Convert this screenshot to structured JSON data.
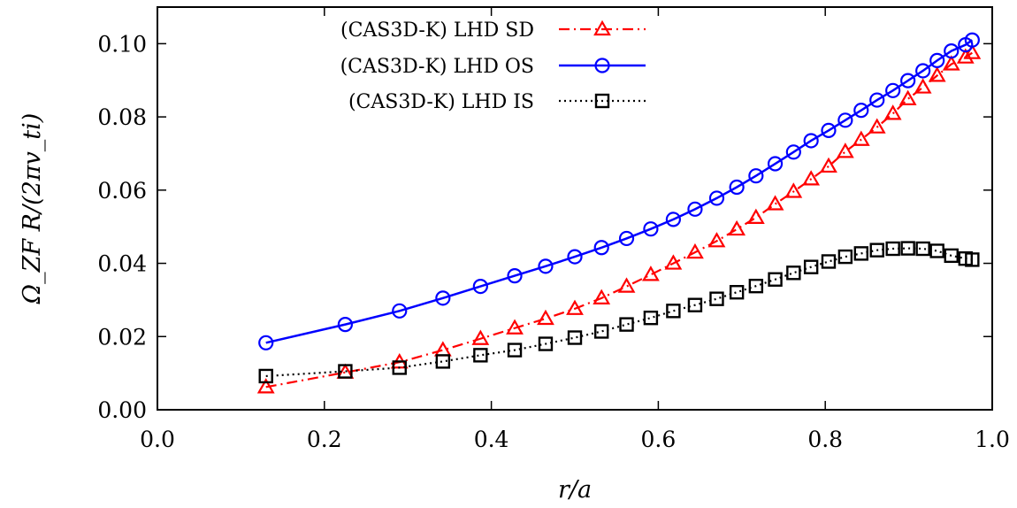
{
  "chart_data": {
    "type": "line",
    "xlabel": "r/a",
    "ylabel": "Ω_ZF R/(2πv_ti)",
    "xlim": [
      0.0,
      1.0
    ],
    "ylim": [
      0.0,
      0.11
    ],
    "x_ticks": [
      "0.0",
      "0.2",
      "0.4",
      "0.6",
      "0.8",
      "1.0"
    ],
    "y_ticks": [
      "0.00",
      "0.02",
      "0.04",
      "0.06",
      "0.08",
      "0.10"
    ],
    "grid": false,
    "legend_position": "top-center",
    "series": [
      {
        "name": "(CAS3D-K) LHD SD",
        "color": "#ff0000",
        "line_style": "dash-dot",
        "marker": "triangle",
        "x": [
          0.13,
          0.225,
          0.29,
          0.342,
          0.387,
          0.428,
          0.465,
          0.5,
          0.532,
          0.562,
          0.591,
          0.618,
          0.644,
          0.67,
          0.694,
          0.717,
          0.74,
          0.762,
          0.783,
          0.804,
          0.824,
          0.843,
          0.862,
          0.881,
          0.899,
          0.917,
          0.934,
          0.951,
          0.968,
          0.976
        ],
        "y": [
          0.0062,
          0.0102,
          0.013,
          0.0163,
          0.0194,
          0.0223,
          0.0249,
          0.0276,
          0.0305,
          0.0337,
          0.0369,
          0.04,
          0.043,
          0.0461,
          0.0493,
          0.0525,
          0.0562,
          0.0596,
          0.063,
          0.0665,
          0.0705,
          0.0738,
          0.0772,
          0.0809,
          0.0849,
          0.0881,
          0.0913,
          0.0944,
          0.0963,
          0.0975
        ]
      },
      {
        "name": "(CAS3D-K) LHD OS",
        "color": "#0000ff",
        "line_style": "solid",
        "marker": "circle",
        "x": [
          0.13,
          0.225,
          0.29,
          0.342,
          0.387,
          0.428,
          0.465,
          0.5,
          0.532,
          0.562,
          0.591,
          0.618,
          0.644,
          0.67,
          0.694,
          0.717,
          0.74,
          0.762,
          0.783,
          0.804,
          0.824,
          0.843,
          0.862,
          0.881,
          0.899,
          0.917,
          0.934,
          0.951,
          0.968,
          0.976
        ],
        "y": [
          0.0183,
          0.0233,
          0.027,
          0.0305,
          0.0337,
          0.0366,
          0.0392,
          0.0418,
          0.0443,
          0.0468,
          0.0494,
          0.052,
          0.0548,
          0.0578,
          0.0608,
          0.0639,
          0.0672,
          0.0704,
          0.0735,
          0.0763,
          0.0791,
          0.0818,
          0.0846,
          0.0872,
          0.0899,
          0.0926,
          0.0954,
          0.098,
          0.0997,
          0.101
        ]
      },
      {
        "name": "(CAS3D-K) LHD IS",
        "color": "#000000",
        "line_style": "dotted",
        "marker": "square",
        "x": [
          0.13,
          0.225,
          0.29,
          0.342,
          0.387,
          0.428,
          0.465,
          0.5,
          0.532,
          0.562,
          0.591,
          0.618,
          0.644,
          0.67,
          0.694,
          0.717,
          0.74,
          0.762,
          0.783,
          0.804,
          0.824,
          0.843,
          0.862,
          0.881,
          0.899,
          0.917,
          0.934,
          0.951,
          0.968,
          0.976
        ],
        "y": [
          0.0092,
          0.0105,
          0.0115,
          0.0132,
          0.0149,
          0.0163,
          0.018,
          0.0197,
          0.0214,
          0.0233,
          0.0251,
          0.027,
          0.0286,
          0.0303,
          0.0321,
          0.0338,
          0.0356,
          0.0374,
          0.039,
          0.0405,
          0.0418,
          0.0427,
          0.0436,
          0.044,
          0.0441,
          0.044,
          0.0434,
          0.0421,
          0.0413,
          0.041
        ]
      }
    ]
  }
}
